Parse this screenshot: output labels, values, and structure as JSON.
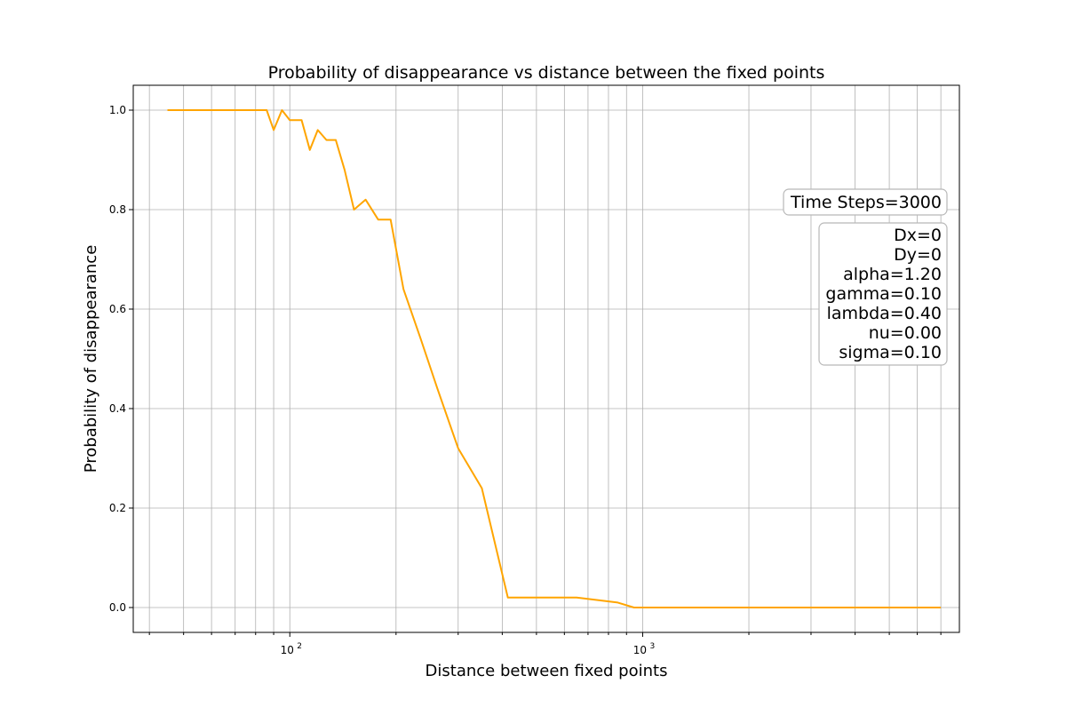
{
  "chart_data": {
    "type": "line",
    "title": "Probability of disappearance vs distance between the fixed points",
    "xlabel": "Distance between fixed points",
    "ylabel": "Probability of disappearance",
    "xscale": "log",
    "xlim": [
      36,
      7900
    ],
    "ylim": [
      -0.05,
      1.05
    ],
    "x_tick_labels": [
      {
        "value": 100,
        "base": "10",
        "exp": "2"
      },
      {
        "value": 1000,
        "base": "10",
        "exp": "3"
      }
    ],
    "y_ticks": [
      0.0,
      0.2,
      0.4,
      0.6,
      0.8,
      1.0
    ],
    "y_tick_labels": [
      "0.0",
      "0.2",
      "0.4",
      "0.6",
      "0.8",
      "1.0"
    ],
    "grid": "both major and minor",
    "series": [
      {
        "color": "#ffa500",
        "x": [
          45,
          60,
          75,
          86,
          90,
          95,
          100,
          108,
          114,
          120,
          127,
          135,
          143,
          152,
          164,
          178,
          193,
          210,
          235,
          262,
          300,
          350,
          415,
          500,
          650,
          850,
          945,
          1400,
          2000,
          3000,
          4500,
          6000,
          7000
        ],
        "y": [
          1.0,
          1.0,
          1.0,
          1.0,
          0.96,
          1.0,
          0.98,
          0.98,
          0.92,
          0.96,
          0.94,
          0.94,
          0.88,
          0.8,
          0.82,
          0.78,
          0.78,
          0.64,
          0.54,
          0.44,
          0.32,
          0.24,
          0.02,
          0.02,
          0.02,
          0.01,
          0.0,
          0.0,
          0.0,
          0.0,
          0.0,
          0.0,
          0.0
        ]
      }
    ],
    "annotations": {
      "time_steps": "Time Steps=3000",
      "parameters": [
        "Dx=0",
        "Dy=0",
        "alpha=1.20",
        "gamma=0.10",
        "lambda=0.40",
        "nu=0.00",
        "sigma=0.10"
      ]
    }
  }
}
